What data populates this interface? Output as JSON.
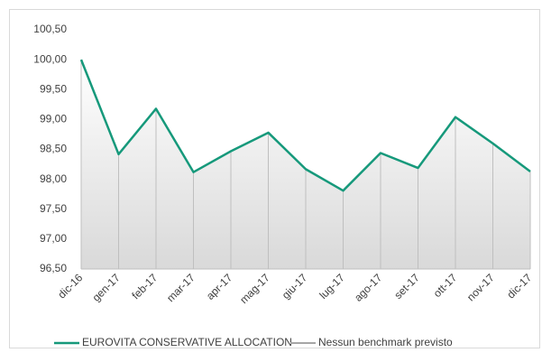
{
  "chart_data": {
    "type": "line",
    "categories": [
      "dic-16",
      "gen-17",
      "feb-17",
      "mar-17",
      "apr-17",
      "mag-17",
      "giu-17",
      "lug-17",
      "ago-17",
      "set-17",
      "ott-17",
      "nov-17",
      "dic-17"
    ],
    "series": [
      {
        "name": "EUROVITA CONSERVATIVE ALLOCATION",
        "color": "#16997b",
        "values": [
          100.0,
          98.42,
          99.18,
          98.12,
          98.47,
          98.78,
          98.17,
          97.81,
          98.44,
          98.19,
          99.04,
          98.6,
          98.13
        ]
      },
      {
        "name": "Nessun benchmark previsto",
        "color": "#a6a6a6",
        "values": [
          null,
          null,
          null,
          null,
          null,
          null,
          null,
          null,
          null,
          null,
          null,
          null,
          null
        ]
      }
    ],
    "ylim": [
      96.5,
      100.5
    ],
    "yticks": [
      {
        "value": 96.5,
        "label": "96,50"
      },
      {
        "value": 97,
        "label": "97,00"
      },
      {
        "value": 97.5,
        "label": "97,50"
      },
      {
        "value": 98,
        "label": "98,00"
      },
      {
        "value": 98.5,
        "label": "98,50"
      },
      {
        "value": 99,
        "label": "99,00"
      },
      {
        "value": 99.5,
        "label": "99,50"
      },
      {
        "value": 100,
        "label": "100,00"
      },
      {
        "value": 100.5,
        "label": "100,50"
      }
    ]
  }
}
